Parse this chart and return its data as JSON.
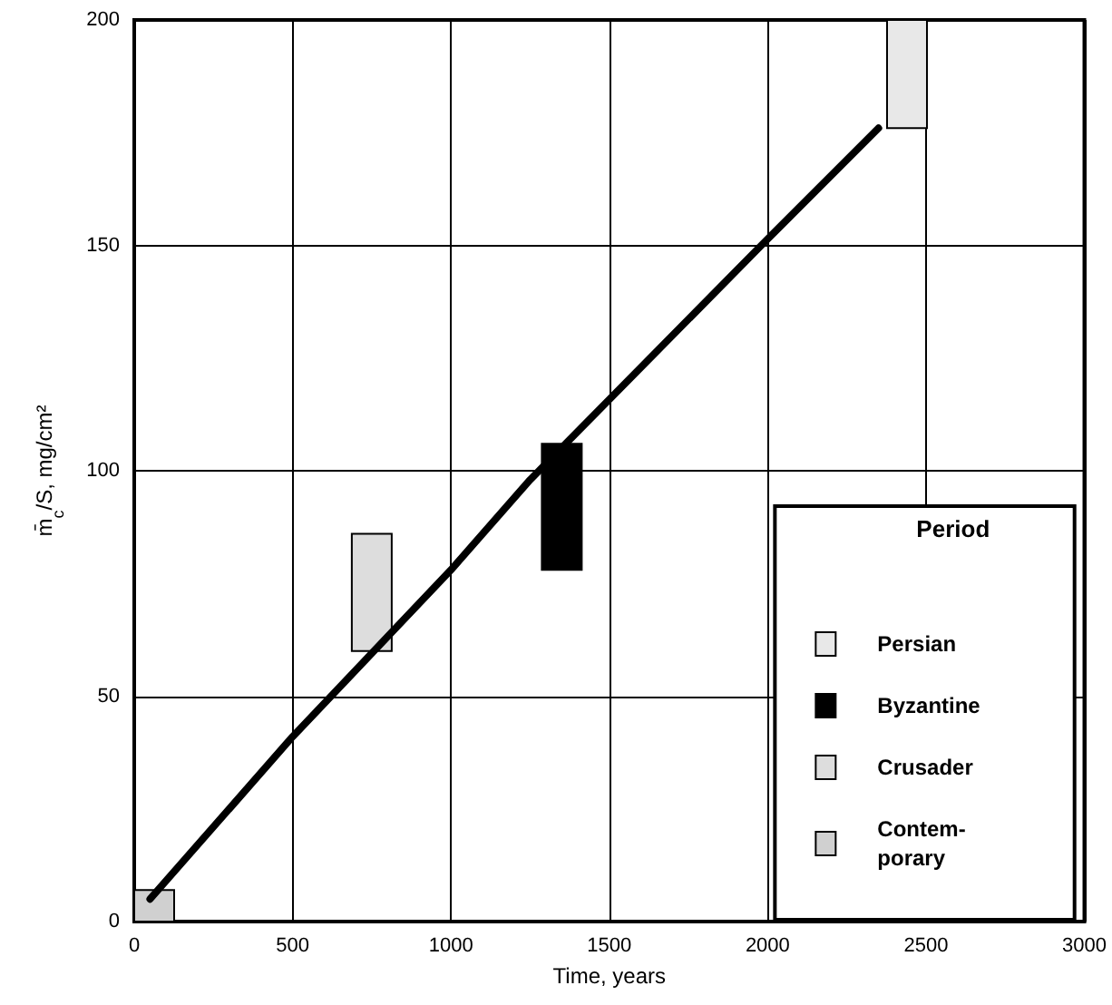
{
  "chart_data": {
    "type": "bar",
    "xlabel": "Time, years",
    "ylabel": "m̄$_{c}$/S, mg/cm²",
    "legend_title": "Period",
    "xlim": [
      0,
      3000
    ],
    "xticks": [
      0,
      500,
      1000,
      1500,
      2000,
      2500,
      3000
    ],
    "ylim": [
      0,
      200
    ],
    "yticks": [
      0,
      50,
      100,
      150,
      200
    ],
    "grid": true,
    "legend": "bottom right",
    "series": [
      {
        "name": "Persian",
        "color": "#e8e8e8",
        "x": [
          2440
        ],
        "base": [
          176
        ],
        "values": [
          24
        ]
      },
      {
        "name": "Byzantine",
        "color": "#000000",
        "x": [
          1350
        ],
        "base": [
          78
        ],
        "values": [
          28
        ]
      },
      {
        "name": "Crusader",
        "color": "#dddddd",
        "x": [
          750
        ],
        "base": [
          60
        ],
        "values": [
          26
        ]
      },
      {
        "name": "Contem-porary",
        "color": "#d0d0d0",
        "x": [
          22
        ],
        "base": [
          0
        ],
        "values": [
          7
        ]
      },
      {
        "type": "line",
        "color": "#000000",
        "marker": "none",
        "line_style": "solid",
        "x": [
          50,
          500,
          1000,
          1250,
          1980,
          2350
        ],
        "values": [
          5,
          41,
          78,
          98,
          150,
          176
        ]
      }
    ]
  }
}
